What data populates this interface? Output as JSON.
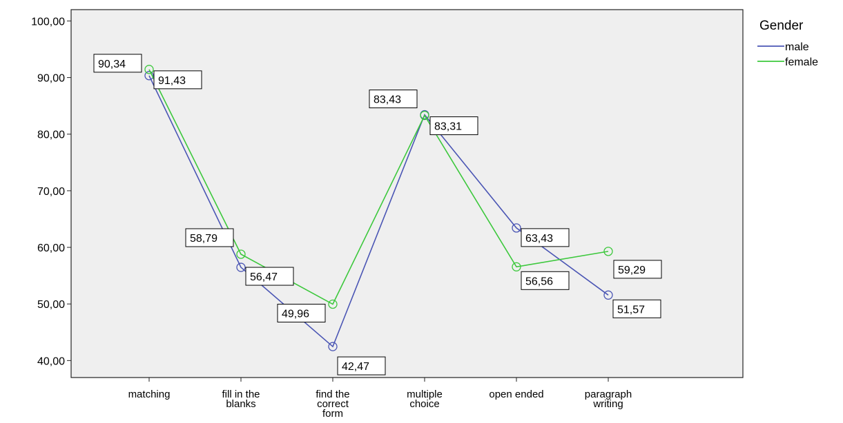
{
  "chart_data": {
    "type": "line",
    "categories": [
      [
        "matching"
      ],
      [
        "fill in the",
        "blanks"
      ],
      [
        "find the",
        "correct",
        "form"
      ],
      [
        "multiple",
        "choice"
      ],
      [
        "open ended"
      ],
      [
        "paragraph",
        "writing"
      ]
    ],
    "ylim": [
      37,
      102
    ],
    "yticks": [
      "40,00",
      "50,00",
      "60,00",
      "70,00",
      "80,00",
      "90,00",
      "100,00"
    ],
    "ytick_values": [
      40,
      50,
      60,
      70,
      80,
      90,
      100
    ],
    "grid": false,
    "legend_title": "Gender",
    "legend_position": "top-right",
    "series": [
      {
        "name": "male",
        "color": "#4a55b4",
        "values": [
          90.34,
          56.47,
          42.47,
          83.43,
          63.43,
          51.57
        ],
        "labels": [
          "90,34",
          "56,47",
          "42,47",
          "83,43",
          "63,43",
          "51,57"
        ]
      },
      {
        "name": "female",
        "color": "#3cc83c",
        "values": [
          91.43,
          58.79,
          49.96,
          83.31,
          56.56,
          59.29
        ],
        "labels": [
          "91,43",
          "58,79",
          "49,96",
          "83,31",
          "56,56",
          "59,29"
        ]
      }
    ]
  }
}
